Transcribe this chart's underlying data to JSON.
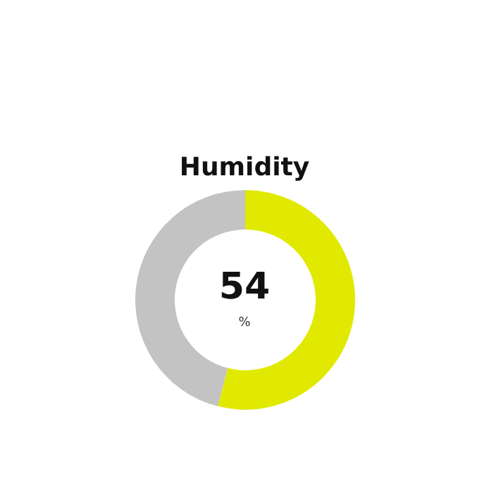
{
  "chart_data": {
    "type": "donut",
    "title": "Humidity",
    "categories": [
      null,
      null
    ],
    "values": [
      54,
      46
    ],
    "colors": [
      "#e1e900",
      "#c3c3c3"
    ],
    "value_labels": [
      "54",
      null
    ],
    "annotations": [
      "%"
    ]
  }
}
